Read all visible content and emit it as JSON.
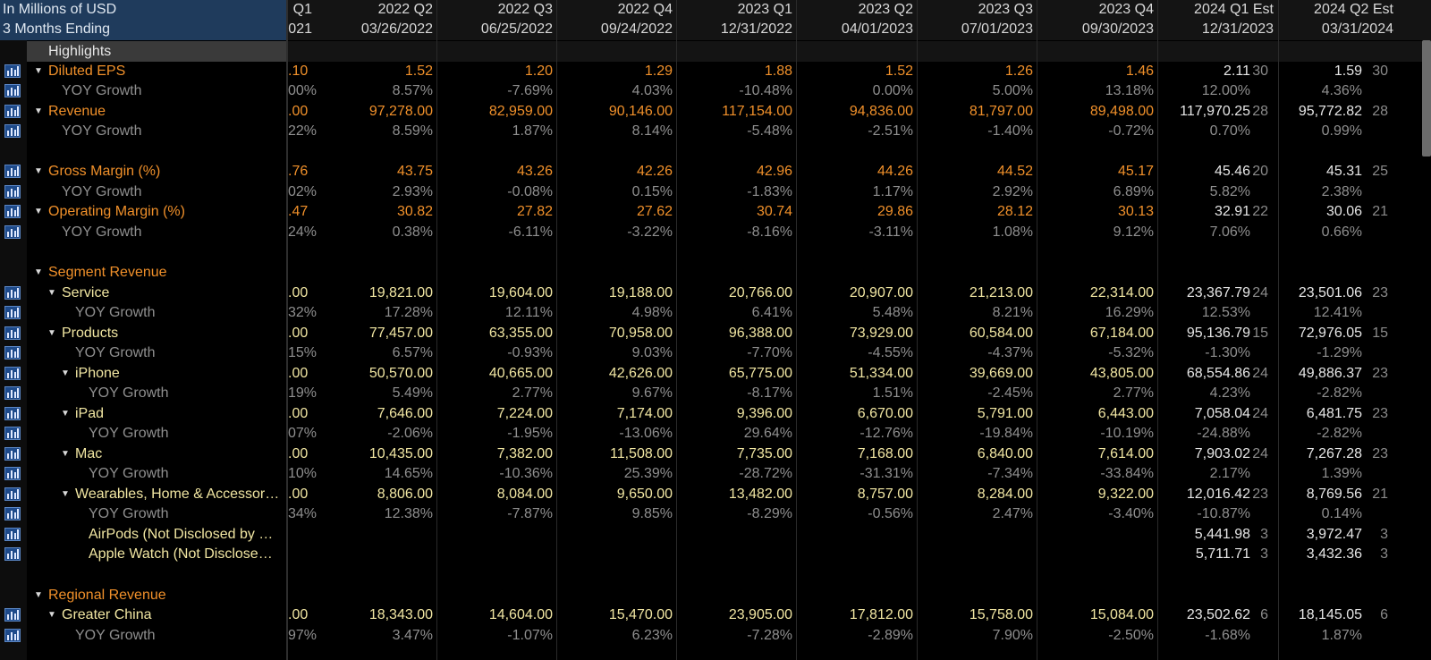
{
  "header": {
    "units": "In Millions of USD",
    "period": "3 Months Ending",
    "columns": [
      {
        "q": "Q1",
        "d": "021"
      },
      {
        "q": "2022 Q2",
        "d": "03/26/2022"
      },
      {
        "q": "2022 Q3",
        "d": "06/25/2022"
      },
      {
        "q": "2022 Q4",
        "d": "09/24/2022"
      },
      {
        "q": "2023 Q1",
        "d": "12/31/2022"
      },
      {
        "q": "2023 Q2",
        "d": "04/01/2023"
      },
      {
        "q": "2023 Q3",
        "d": "07/01/2023"
      },
      {
        "q": "2023 Q4",
        "d": "09/30/2023"
      },
      {
        "q": "2024 Q1 Est",
        "d": "12/31/2023"
      },
      {
        "q": "2024 Q2 Est",
        "d": "03/31/2024"
      }
    ]
  },
  "rows": [
    {
      "label": "Highlights",
      "type": "section-sel",
      "vals": [
        "",
        "",
        "",
        "",
        "",
        "",
        "",
        "",
        "",
        ""
      ],
      "c1": "",
      "c2": ""
    },
    {
      "label": "Diluted EPS",
      "type": "main",
      "arrow": true,
      "icon": true,
      "vals": [
        ".10",
        "1.52",
        "1.20",
        "1.29",
        "1.88",
        "1.52",
        "1.26",
        "1.46",
        "2.11",
        "1.59"
      ],
      "c1": "30",
      "c2": "30"
    },
    {
      "label": "YOY Growth",
      "type": "yoy",
      "icon": true,
      "vals": [
        "00%",
        "8.57%",
        "-7.69%",
        "4.03%",
        "-10.48%",
        "0.00%",
        "5.00%",
        "13.18%",
        "12.00%",
        "4.36%"
      ],
      "c1": "",
      "c2": ""
    },
    {
      "label": "Revenue",
      "type": "main",
      "arrow": true,
      "icon": true,
      "vals": [
        ".00",
        "97,278.00",
        "82,959.00",
        "90,146.00",
        "117,154.00",
        "94,836.00",
        "81,797.00",
        "89,498.00",
        "117,970.25",
        "95,772.82"
      ],
      "c1": "28",
      "c2": "28"
    },
    {
      "label": "YOY Growth",
      "type": "yoy",
      "icon": true,
      "vals": [
        "22%",
        "8.59%",
        "1.87%",
        "8.14%",
        "-5.48%",
        "-2.51%",
        "-1.40%",
        "-0.72%",
        "0.70%",
        "0.99%"
      ],
      "c1": "",
      "c2": ""
    },
    {
      "label": "",
      "type": "blank",
      "vals": [
        "",
        "",
        "",
        "",
        "",
        "",
        "",
        "",
        "",
        ""
      ],
      "c1": "",
      "c2": ""
    },
    {
      "label": "Gross Margin (%)",
      "type": "main",
      "arrow": true,
      "icon": true,
      "vals": [
        ".76",
        "43.75",
        "43.26",
        "42.26",
        "42.96",
        "44.26",
        "44.52",
        "45.17",
        "45.46",
        "45.31"
      ],
      "c1": "20",
      "c2": "25"
    },
    {
      "label": "YOY Growth",
      "type": "yoy",
      "icon": true,
      "vals": [
        "02%",
        "2.93%",
        "-0.08%",
        "0.15%",
        "-1.83%",
        "1.17%",
        "2.92%",
        "6.89%",
        "5.82%",
        "2.38%"
      ],
      "c1": "",
      "c2": ""
    },
    {
      "label": "Operating Margin (%)",
      "type": "main",
      "arrow": true,
      "icon": true,
      "vals": [
        ".47",
        "30.82",
        "27.82",
        "27.62",
        "30.74",
        "29.86",
        "28.12",
        "30.13",
        "32.91",
        "30.06"
      ],
      "c1": "22",
      "c2": "21"
    },
    {
      "label": "YOY Growth",
      "type": "yoy",
      "icon": true,
      "vals": [
        "24%",
        "0.38%",
        "-6.11%",
        "-3.22%",
        "-8.16%",
        "-3.11%",
        "1.08%",
        "9.12%",
        "7.06%",
        "0.66%"
      ],
      "c1": "",
      "c2": ""
    },
    {
      "label": "",
      "type": "blank",
      "vals": [
        "",
        "",
        "",
        "",
        "",
        "",
        "",
        "",
        "",
        ""
      ],
      "c1": "",
      "c2": ""
    },
    {
      "label": "Segment Revenue",
      "type": "main",
      "arrow": true,
      "icon": false,
      "vals": [
        "",
        "",
        "",
        "",
        "",
        "",
        "",
        "",
        "",
        ""
      ],
      "c1": "",
      "c2": ""
    },
    {
      "label": "Service",
      "type": "sub1",
      "arrow": true,
      "icon": true,
      "vals": [
        ".00",
        "19,821.00",
        "19,604.00",
        "19,188.00",
        "20,766.00",
        "20,907.00",
        "21,213.00",
        "22,314.00",
        "23,367.79",
        "23,501.06"
      ],
      "c1": "24",
      "c2": "23"
    },
    {
      "label": "YOY Growth",
      "type": "yoy1",
      "icon": true,
      "vals": [
        "32%",
        "17.28%",
        "12.11%",
        "4.98%",
        "6.41%",
        "5.48%",
        "8.21%",
        "16.29%",
        "12.53%",
        "12.41%"
      ],
      "c1": "",
      "c2": ""
    },
    {
      "label": "Products",
      "type": "sub1",
      "arrow": true,
      "icon": true,
      "vals": [
        ".00",
        "77,457.00",
        "63,355.00",
        "70,958.00",
        "96,388.00",
        "73,929.00",
        "60,584.00",
        "67,184.00",
        "95,136.79",
        "72,976.05"
      ],
      "c1": "15",
      "c2": "15"
    },
    {
      "label": "YOY Growth",
      "type": "yoy1",
      "icon": true,
      "vals": [
        "15%",
        "6.57%",
        "-0.93%",
        "9.03%",
        "-7.70%",
        "-4.55%",
        "-4.37%",
        "-5.32%",
        "-1.30%",
        "-1.29%"
      ],
      "c1": "",
      "c2": ""
    },
    {
      "label": "iPhone",
      "type": "sub2",
      "arrow": true,
      "icon": true,
      "vals": [
        ".00",
        "50,570.00",
        "40,665.00",
        "42,626.00",
        "65,775.00",
        "51,334.00",
        "39,669.00",
        "43,805.00",
        "68,554.86",
        "49,886.37"
      ],
      "c1": "24",
      "c2": "23"
    },
    {
      "label": "YOY Growth",
      "type": "yoy2",
      "icon": true,
      "vals": [
        "19%",
        "5.49%",
        "2.77%",
        "9.67%",
        "-8.17%",
        "1.51%",
        "-2.45%",
        "2.77%",
        "4.23%",
        "-2.82%"
      ],
      "c1": "",
      "c2": ""
    },
    {
      "label": "iPad",
      "type": "sub2",
      "arrow": true,
      "icon": true,
      "vals": [
        ".00",
        "7,646.00",
        "7,224.00",
        "7,174.00",
        "9,396.00",
        "6,670.00",
        "5,791.00",
        "6,443.00",
        "7,058.04",
        "6,481.75"
      ],
      "c1": "24",
      "c2": "23"
    },
    {
      "label": "YOY Growth",
      "type": "yoy2",
      "icon": true,
      "vals": [
        "07%",
        "-2.06%",
        "-1.95%",
        "-13.06%",
        "29.64%",
        "-12.76%",
        "-19.84%",
        "-10.19%",
        "-24.88%",
        "-2.82%"
      ],
      "c1": "",
      "c2": ""
    },
    {
      "label": "Mac",
      "type": "sub2",
      "arrow": true,
      "icon": true,
      "vals": [
        ".00",
        "10,435.00",
        "7,382.00",
        "11,508.00",
        "7,735.00",
        "7,168.00",
        "6,840.00",
        "7,614.00",
        "7,903.02",
        "7,267.28"
      ],
      "c1": "24",
      "c2": "23"
    },
    {
      "label": "YOY Growth",
      "type": "yoy2",
      "icon": true,
      "vals": [
        "10%",
        "14.65%",
        "-10.36%",
        "25.39%",
        "-28.72%",
        "-31.31%",
        "-7.34%",
        "-33.84%",
        "2.17%",
        "1.39%"
      ],
      "c1": "",
      "c2": ""
    },
    {
      "label": "Wearables, Home & Accessor…",
      "type": "sub2",
      "arrow": true,
      "icon": true,
      "vals": [
        ".00",
        "8,806.00",
        "8,084.00",
        "9,650.00",
        "13,482.00",
        "8,757.00",
        "8,284.00",
        "9,322.00",
        "12,016.42",
        "8,769.56"
      ],
      "c1": "23",
      "c2": "21"
    },
    {
      "label": "YOY Growth",
      "type": "yoy2",
      "icon": true,
      "vals": [
        "34%",
        "12.38%",
        "-7.87%",
        "9.85%",
        "-8.29%",
        "-0.56%",
        "2.47%",
        "-3.40%",
        "-10.87%",
        "0.14%"
      ],
      "c1": "",
      "c2": ""
    },
    {
      "label": "AirPods (Not Disclosed by …",
      "type": "sub3",
      "icon": true,
      "vals": [
        "",
        "",
        "",
        "",
        "",
        "",
        "",
        "",
        "5,441.98",
        "3,972.47"
      ],
      "c1": "3",
      "c2": "3"
    },
    {
      "label": "Apple Watch (Not Disclose…",
      "type": "sub3",
      "icon": true,
      "vals": [
        "",
        "",
        "",
        "",
        "",
        "",
        "",
        "",
        "5,711.71",
        "3,432.36"
      ],
      "c1": "3",
      "c2": "3"
    },
    {
      "label": "",
      "type": "blank",
      "vals": [
        "",
        "",
        "",
        "",
        "",
        "",
        "",
        "",
        "",
        ""
      ],
      "c1": "",
      "c2": ""
    },
    {
      "label": "Regional Revenue",
      "type": "main",
      "arrow": true,
      "icon": false,
      "vals": [
        "",
        "",
        "",
        "",
        "",
        "",
        "",
        "",
        "",
        ""
      ],
      "c1": "",
      "c2": ""
    },
    {
      "label": "Greater China",
      "type": "sub1",
      "arrow": true,
      "icon": true,
      "vals": [
        ".00",
        "18,343.00",
        "14,604.00",
        "15,470.00",
        "23,905.00",
        "17,812.00",
        "15,758.00",
        "15,084.00",
        "23,502.62",
        "18,145.05"
      ],
      "c1": "6",
      "c2": "6"
    },
    {
      "label": "YOY Growth",
      "type": "yoy1",
      "icon": true,
      "vals": [
        "97%",
        "3.47%",
        "-1.07%",
        "6.23%",
        "-7.28%",
        "-2.89%",
        "7.90%",
        "-2.50%",
        "-1.68%",
        "1.87%"
      ],
      "c1": "",
      "c2": ""
    }
  ]
}
